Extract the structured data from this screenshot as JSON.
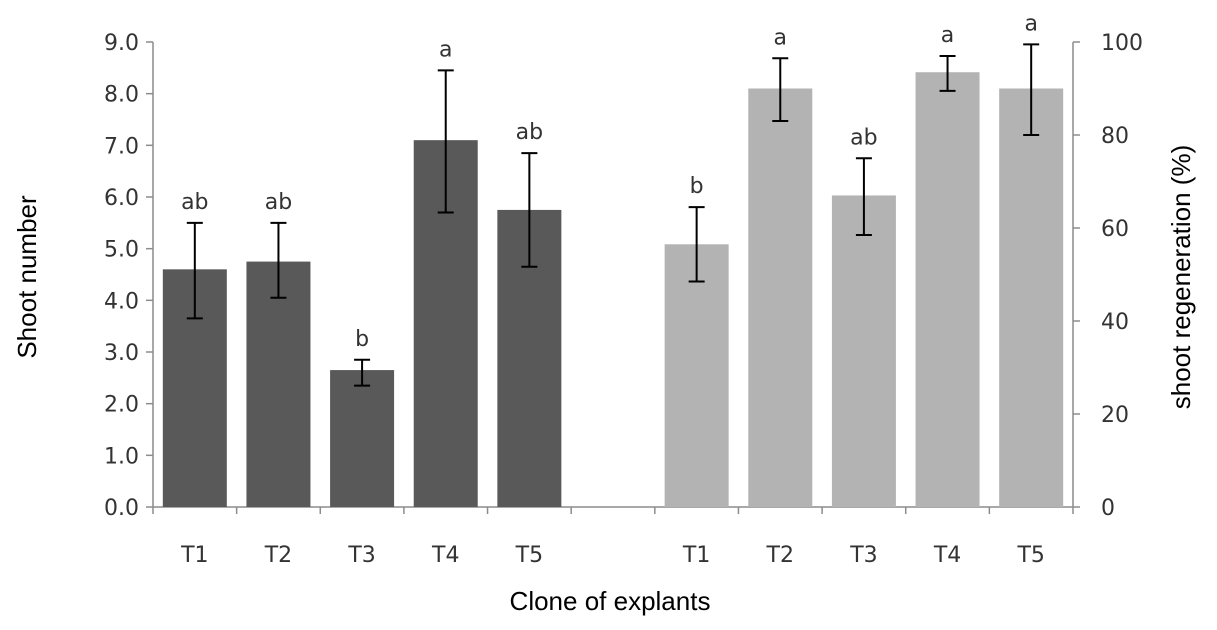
{
  "chart_data": {
    "type": "bar",
    "xlabel": "Clone of explants",
    "left_axis": {
      "label": "Shoot number",
      "range": [
        0,
        9
      ],
      "ticks": [
        "0.0",
        "1.0",
        "2.0",
        "3.0",
        "4.0",
        "5.0",
        "6.0",
        "7.0",
        "8.0",
        "9.0"
      ]
    },
    "right_axis": {
      "label": "shoot regeneration (%)",
      "range": [
        0,
        100
      ],
      "ticks": [
        "0",
        "20",
        "40",
        "60",
        "80",
        "100"
      ]
    },
    "grid": false,
    "colors": {
      "shoot_number": "#595959",
      "shoot_regeneration": "#b3b3b3"
    },
    "groups": [
      {
        "axis": "left",
        "categories": [
          "T1",
          "T2",
          "T3",
          "T4",
          "T5"
        ],
        "values": [
          4.6,
          4.75,
          2.65,
          7.1,
          5.75
        ],
        "err_low": [
          3.65,
          4.05,
          2.35,
          5.7,
          4.65
        ],
        "err_high": [
          5.5,
          5.5,
          2.85,
          8.45,
          6.85
        ],
        "letters": [
          "ab",
          "ab",
          "b",
          "a",
          "ab"
        ]
      },
      {
        "axis": "right",
        "categories": [
          "T1",
          "T2",
          "T3",
          "T4",
          "T5"
        ],
        "values": [
          56.5,
          90,
          67,
          93.5,
          90
        ],
        "err_low": [
          48.5,
          83,
          58.5,
          89.5,
          80
        ],
        "err_high": [
          64.5,
          96.5,
          75,
          97,
          99.5
        ],
        "letters": [
          "b",
          "a",
          "ab",
          "a",
          "a"
        ]
      }
    ]
  }
}
